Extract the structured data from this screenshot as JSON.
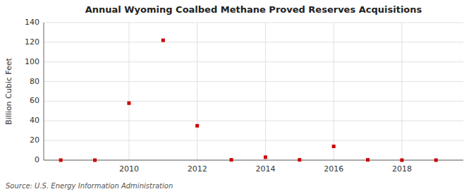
{
  "chart_data": {
    "type": "scatter",
    "title": "Annual Wyoming Coalbed Methane Proved Reserves Acquisitions",
    "ylabel": "Billion Cubic Feet",
    "source": "Source: U.S. Energy Information Administration",
    "x": [
      2008,
      2009,
      2010,
      2011,
      2012,
      2013,
      2014,
      2015,
      2016,
      2017,
      2018,
      2019
    ],
    "values": [
      0.0,
      0.0,
      58.0,
      122.0,
      35.0,
      0.3,
      3.0,
      0.3,
      14.0,
      0.3,
      0.0,
      0.0
    ],
    "color": "#cc0000",
    "marker": "square",
    "xlim": [
      2007.5,
      2019.8
    ],
    "xticks": [
      2010,
      2012,
      2014,
      2016,
      2018
    ],
    "ylim": [
      0,
      140
    ],
    "yticks": [
      0,
      20,
      40,
      60,
      80,
      100,
      120,
      140
    ],
    "grid": true
  }
}
